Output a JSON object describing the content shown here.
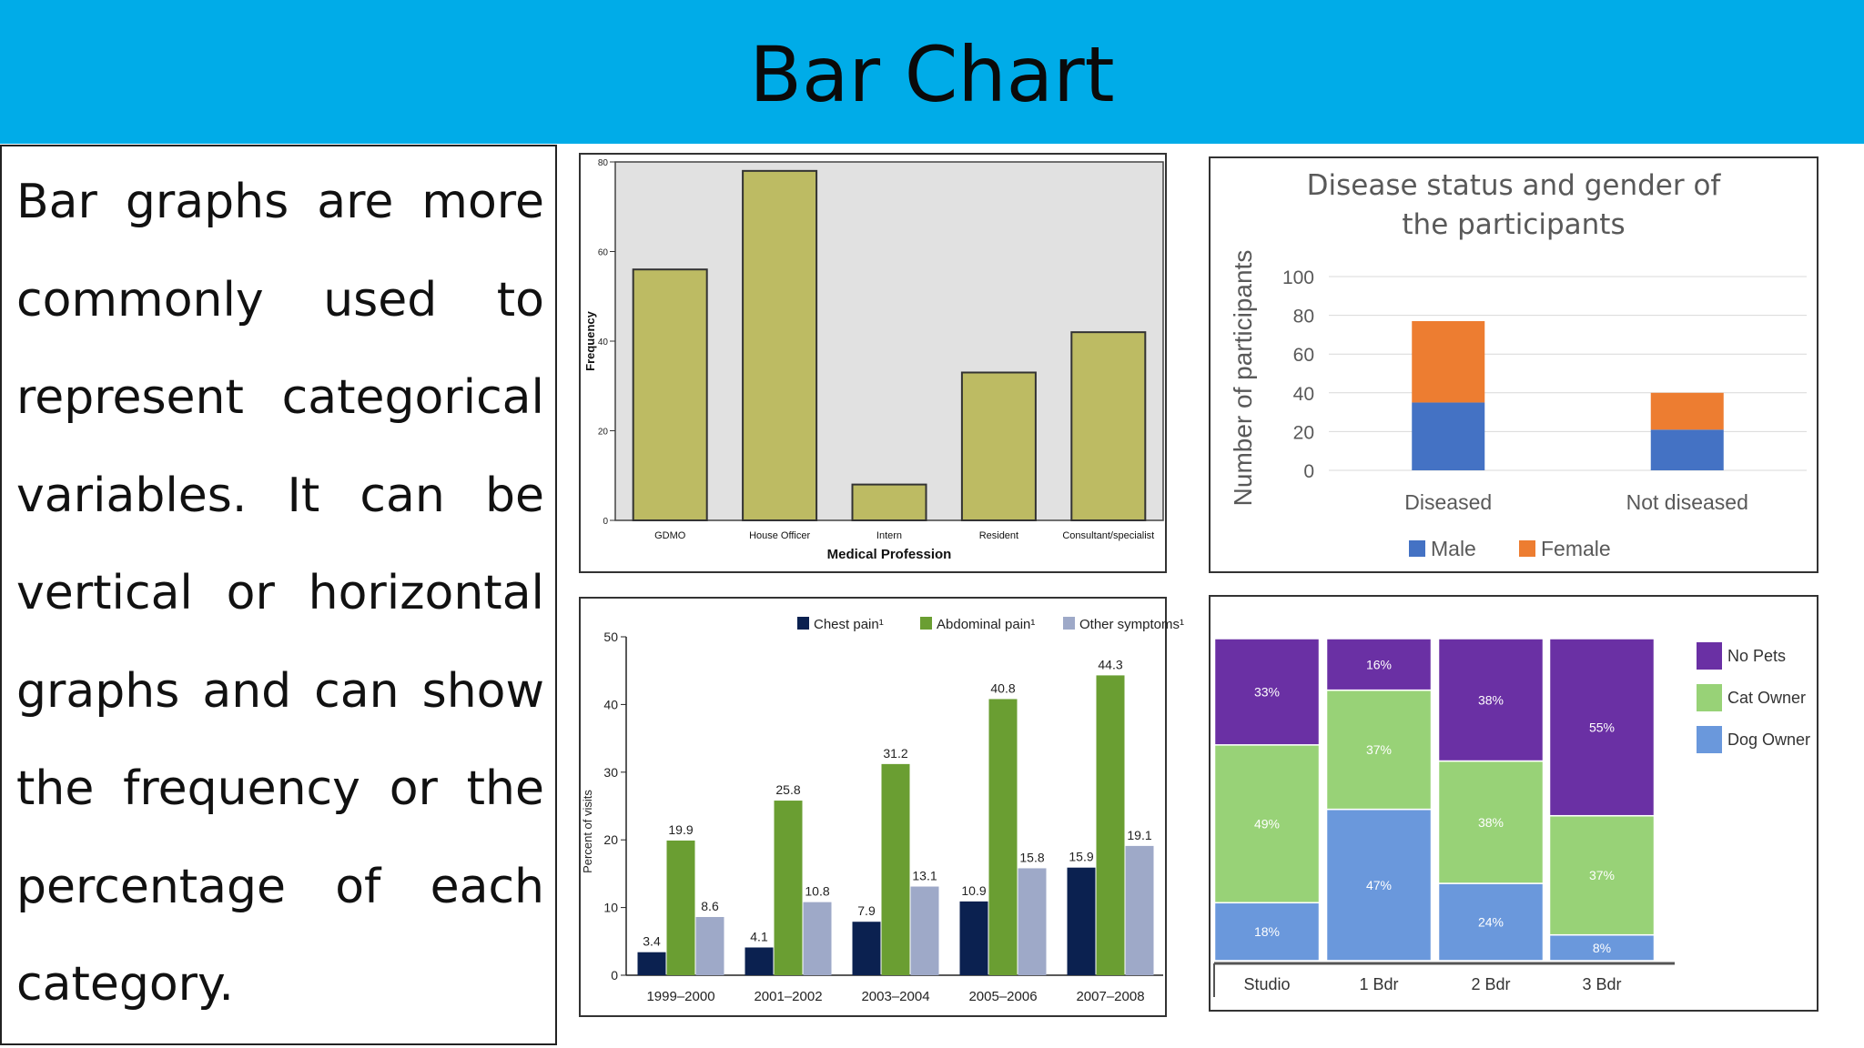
{
  "slide": {
    "title": "Bar Chart",
    "body_text": "Bar graphs are more commonly used to represent categorical variables. It can be vertical or horizontal graphs and can show the frequency or the percentage of each category."
  },
  "colors": {
    "title_bar": "#00ace8",
    "olive_bar": "#bdbb63",
    "male": "#4472c4",
    "female": "#ed7d31",
    "chest_pain": "#0b2150",
    "abdominal_pain": "#6a9e32",
    "other_symptoms": "#9ea9c8",
    "no_pets": "#6a30a4",
    "cat_owner": "#98d277",
    "dog_owner": "#6a98dc"
  },
  "chart_data": [
    {
      "type": "bar",
      "title": "",
      "xlabel": "Medical Profession",
      "ylabel": "Frequency",
      "categories": [
        "GDMO",
        "House Officer",
        "Intern",
        "Resident",
        "Consultant/specialist"
      ],
      "values": [
        56,
        78,
        8,
        33,
        42
      ],
      "ylim": [
        0,
        80
      ],
      "yticks": [
        "0",
        "20",
        "40",
        "60",
        "80"
      ]
    },
    {
      "type": "bar",
      "stacked": true,
      "title": "Disease status and gender of the participants",
      "xlabel": "",
      "ylabel": "Number of participants",
      "categories": [
        "Diseased",
        "Not diseased"
      ],
      "series": [
        {
          "name": "Male",
          "values": [
            35,
            21
          ]
        },
        {
          "name": "Female",
          "values": [
            42,
            19
          ]
        }
      ],
      "ylim": [
        0,
        100
      ],
      "yticks": [
        "0",
        "20",
        "40",
        "60",
        "80",
        "100"
      ],
      "legend": "bottom",
      "grid": true
    },
    {
      "type": "bar",
      "title": "",
      "xlabel": "",
      "ylabel": "Percent of visits",
      "categories": [
        "1999–2000",
        "2001–2002",
        "2003–2004",
        "2005–2006",
        "2007–2008"
      ],
      "series": [
        {
          "name": "Chest pain¹",
          "values": [
            3.4,
            4.1,
            7.9,
            10.9,
            15.9
          ],
          "labels": [
            "3.4",
            "4.1",
            "7.9",
            "10.9",
            "15.9"
          ]
        },
        {
          "name": "Abdominal pain¹",
          "values": [
            19.9,
            25.8,
            31.2,
            40.8,
            44.3
          ],
          "labels": [
            "19.9",
            "25.8",
            "31.2",
            "40.8",
            "44.3"
          ]
        },
        {
          "name": "Other symptoms¹",
          "values": [
            8.6,
            10.8,
            13.1,
            15.8,
            19.1
          ],
          "labels": [
            "8.6",
            "10.8",
            "13.1",
            "15.8",
            "19.1"
          ]
        }
      ],
      "ylim": [
        0,
        50
      ],
      "yticks": [
        "0",
        "10",
        "20",
        "30",
        "40",
        "50"
      ],
      "legend": "top"
    },
    {
      "type": "bar",
      "stacked": true,
      "title": "",
      "xlabel": "",
      "ylabel": "",
      "categories": [
        "Studio",
        "1 Bdr",
        "2 Bdr",
        "3 Bdr"
      ],
      "series": [
        {
          "name": "Dog Owner",
          "values": [
            18,
            47,
            24,
            8
          ],
          "labels": [
            "18%",
            "47%",
            "24%",
            "8%"
          ]
        },
        {
          "name": "Cat Owner",
          "values": [
            49,
            37,
            38,
            37
          ],
          "labels": [
            "49%",
            "37%",
            "38%",
            "37%"
          ]
        },
        {
          "name": "No Pets",
          "values": [
            33,
            16,
            38,
            55
          ],
          "labels": [
            "33%",
            "16%",
            "38%",
            "55%"
          ]
        }
      ],
      "ylim": [
        0,
        100
      ],
      "legend": "right",
      "legend_order": [
        "No Pets",
        "Cat Owner",
        "Dog Owner"
      ]
    }
  ]
}
